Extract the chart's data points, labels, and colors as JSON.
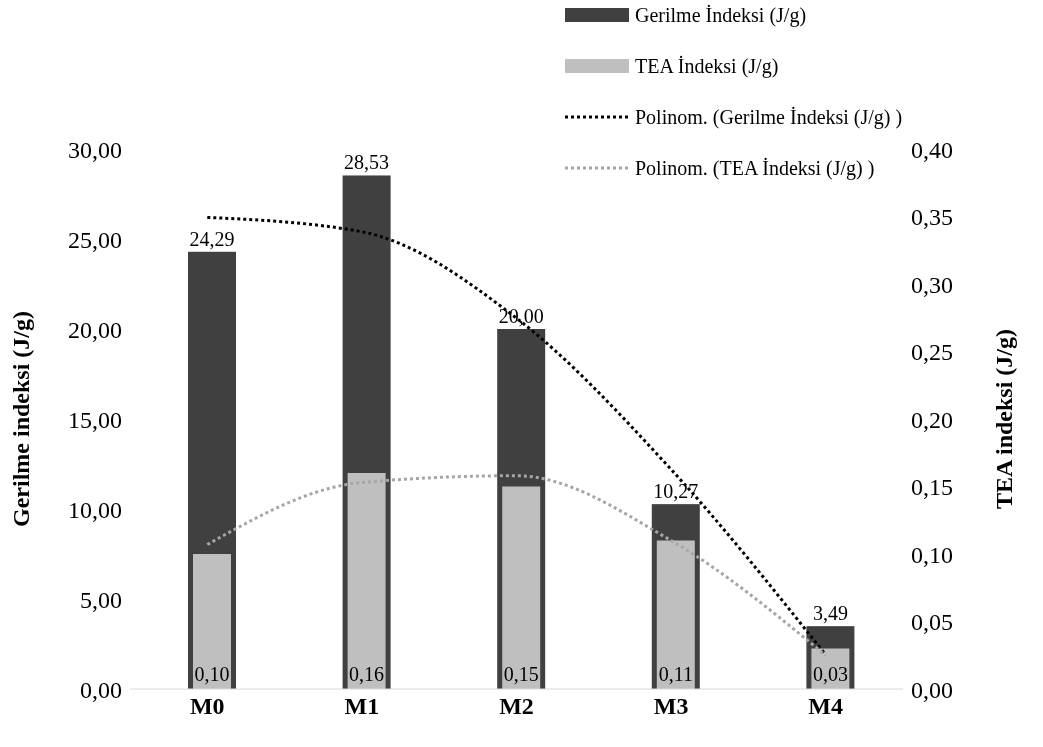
{
  "chart_data": {
    "type": "bar",
    "xlabel": null,
    "ylabel": "Gerilme indeksi (J/g)",
    "y2label": "TEA indeksi (J/g)",
    "categories": [
      "M0",
      "M1",
      "M2",
      "M3",
      "M4"
    ],
    "series": [
      {
        "name": "Gerilme İndeksi (J/g)",
        "color": "#404040",
        "values": [
          24.29,
          28.53,
          20.0,
          10.27,
          3.49
        ],
        "value_labels": [
          "24,29",
          "28,53",
          "20,00",
          "10,27",
          "3,49"
        ]
      },
      {
        "name": "TEA İndeksi (J/g)",
        "axis": "y2",
        "color": "#bfbfbf",
        "values": [
          0.1,
          0.16,
          0.15,
          0.11,
          0.03
        ],
        "value_labels": [
          "0,10",
          "0,16",
          "0,15",
          "0,11",
          "0,03"
        ]
      },
      {
        "name": "Polinom. (Gerilme İndeksi (J/g) )",
        "type": "line",
        "line_style": "dotted",
        "marker": "none",
        "color": "#000000",
        "values": [
          26.2,
          25.4,
          20.6,
          12.2,
          1.9
        ]
      },
      {
        "name": "Polinom. (TEA İndeksi (J/g) )",
        "type": "line",
        "axis": "y2",
        "line_style": "dotted",
        "marker": "none",
        "color": "#a6a6a6",
        "values": [
          0.107,
          0.153,
          0.158,
          0.11,
          0.025
        ]
      }
    ],
    "ylim": [
      0,
      30
    ],
    "yticks": [
      {
        "value": 0,
        "label": "0,00"
      },
      {
        "value": 5,
        "label": "5,00"
      },
      {
        "value": 10,
        "label": "10,00"
      },
      {
        "value": 15,
        "label": "15,00"
      },
      {
        "value": 20,
        "label": "20,00"
      },
      {
        "value": 25,
        "label": "25,00"
      },
      {
        "value": 30,
        "label": "30,00"
      }
    ],
    "y2lim": [
      0,
      0.4
    ],
    "y2ticks": [
      {
        "value": 0,
        "label": "0,00"
      },
      {
        "value": 0.05,
        "label": "0,05"
      },
      {
        "value": 0.1,
        "label": "0,10"
      },
      {
        "value": 0.15,
        "label": "0,15"
      },
      {
        "value": 0.2,
        "label": "0,20"
      },
      {
        "value": 0.25,
        "label": "0,25"
      },
      {
        "value": 0.3,
        "label": "0,30"
      },
      {
        "value": 0.35,
        "label": "0,35"
      },
      {
        "value": 0.4,
        "label": "0,40"
      }
    ],
    "grid": false,
    "legend": "top right"
  }
}
